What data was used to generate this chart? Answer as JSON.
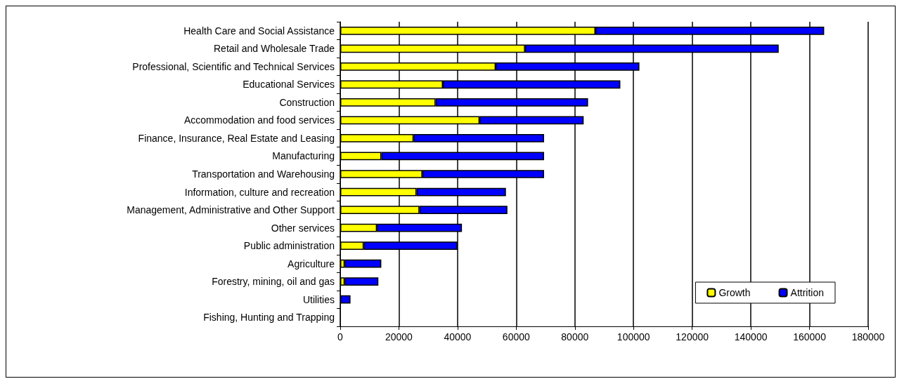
{
  "chart_data": {
    "type": "bar",
    "orientation": "horizontal",
    "stacked": true,
    "categories": [
      "Health Care and Social Assistance",
      "Retail and Wholesale Trade",
      "Professional, Scientific and Technical Services",
      "Educational Services",
      "Construction",
      "Accommodation and food services",
      "Finance, Insurance, Real Estate and Leasing",
      "Manufacturing",
      "Transportation and Warehousing",
      "Information, culture and recreation",
      "Management, Administrative and Other Support",
      "Other services",
      "Public administration",
      "Agriculture",
      "Forestry, mining, oil and gas",
      "Utilities",
      "Fishing, Hunting and Trapping"
    ],
    "series": [
      {
        "name": "Growth",
        "color": "#ffff00",
        "values": [
          87000,
          63000,
          53000,
          35000,
          32500,
          47500,
          25000,
          14000,
          28000,
          26000,
          27000,
          12500,
          8000,
          1500,
          1500,
          0,
          0
        ]
      },
      {
        "name": "Attrition",
        "color": "#0000ff",
        "values": [
          78000,
          86500,
          49000,
          60500,
          52000,
          35500,
          44500,
          55500,
          41500,
          30500,
          30000,
          29000,
          32000,
          12500,
          11500,
          3500,
          0
        ]
      }
    ],
    "xlim": [
      0,
      180000
    ],
    "xticks": [
      0,
      20000,
      40000,
      60000,
      80000,
      100000,
      120000,
      140000,
      160000,
      180000
    ],
    "grid": "x",
    "legend": "bottom right"
  }
}
